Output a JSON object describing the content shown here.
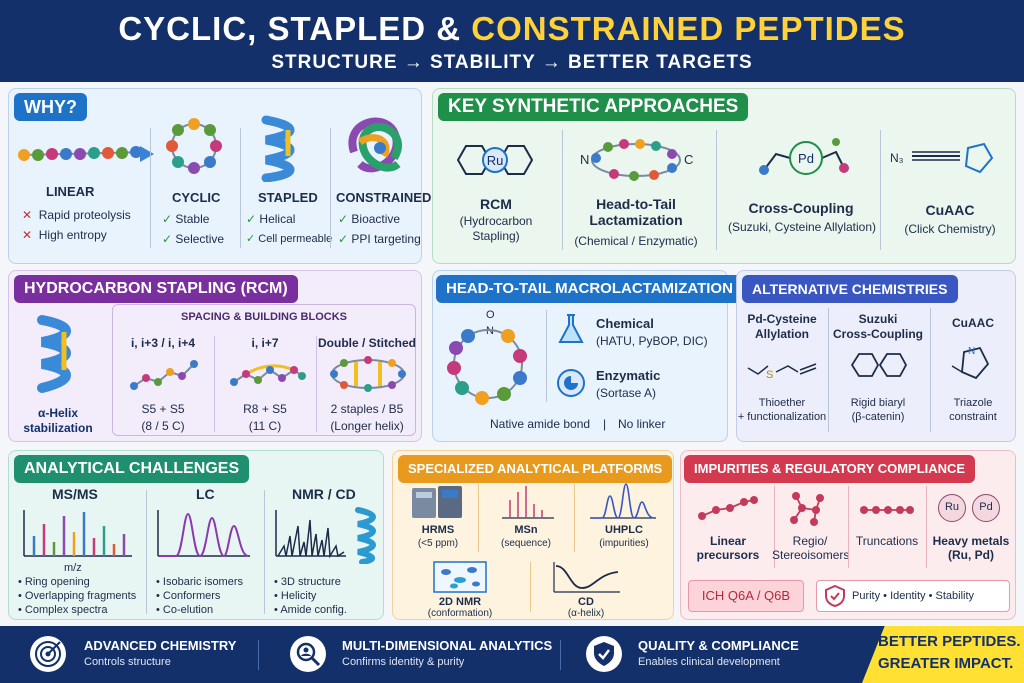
{
  "header": {
    "title_a": "CYCLIC, STAPLED & ",
    "title_b": "CONSTRAINED PEPTIDES",
    "subtitle": "STRUCTURE  →  STABILITY  →  BETTER TARGETS"
  },
  "why": {
    "tag": "WHY?",
    "linear": {
      "label": "LINEAR",
      "items": [
        "Rapid proteolysis",
        "High entropy"
      ]
    },
    "cyclic": {
      "label": "CYCLIC",
      "items": [
        "Stable",
        "Selective"
      ]
    },
    "stapled": {
      "label": "STAPLED",
      "items": [
        "Helical",
        "Cell permeable"
      ]
    },
    "constrained": {
      "label": "CONSTRAINED",
      "items": [
        "Bioactive",
        "PPI targeting"
      ]
    }
  },
  "approaches": {
    "tag": "KEY SYNTHETIC APPROACHES",
    "items": [
      {
        "title": "RCM",
        "sub": "(Hydrocarbon\nStapling)",
        "icon_text": "Ru"
      },
      {
        "title": "Head-to-Tail\nLactamization",
        "sub": "(Chemical / Enzymatic)",
        "n": "N",
        "c": "C"
      },
      {
        "title": "Cross-Coupling",
        "sub": "(Suzuki, Cysteine Allylation)",
        "icon_text": "Pd"
      },
      {
        "title": "CuAAC",
        "sub": "(Click Chemistry)",
        "n3": "N₃"
      }
    ]
  },
  "stapling": {
    "tag": "HYDROCARBON STAPLING (RCM)",
    "helix_label": "α-Helix\nstabilization",
    "blocks_title": "SPACING & BUILDING BLOCKS",
    "cols": [
      {
        "head": "i, i+3 / i, i+4",
        "l1": "S5 + S5",
        "l2": "(8 / 5 C)"
      },
      {
        "head": "i, i+7",
        "l1": "R8 + S5",
        "l2": "(11 C)"
      },
      {
        "head": "Double / Stitched",
        "l1": "2 staples / B5",
        "l2": "(Longer helix)"
      }
    ]
  },
  "macro": {
    "tag": "HEAD-TO-TAIL MACROLACTAMIZATION",
    "o": "O",
    "n": "N",
    "chemical": {
      "title": "Chemical",
      "sub": "(HATU, PyBOP, DIC)"
    },
    "enzymatic": {
      "title": "Enzymatic",
      "sub": "(Sortase A)"
    },
    "footer_a": "Native amide bond",
    "sep": "|",
    "footer_b": "No linker"
  },
  "alt": {
    "tag": "ALTERNATIVE CHEMISTRIES",
    "cols": [
      {
        "title": "Pd-Cysteine\nAllylation",
        "sub": "Thioether\n+ functionalization",
        "s": "S"
      },
      {
        "title": "Suzuki\nCross-Coupling",
        "sub": "Rigid biaryl\n(β-catenin)"
      },
      {
        "title": "CuAAC",
        "sub": "Triazole\nconstraint",
        "n": "N"
      }
    ]
  },
  "challenges": {
    "tag": "ANALYTICAL CHALLENGES",
    "msms": {
      "title": "MS/MS",
      "axis": "m/z",
      "items": [
        "Ring opening",
        "Overlapping fragments",
        "Complex spectra"
      ]
    },
    "lc": {
      "title": "LC",
      "items": [
        "Isobaric isomers",
        "Conformers",
        "Co-elution"
      ]
    },
    "nmr": {
      "title": "NMR / CD",
      "items": [
        "3D structure",
        "Helicity",
        "Amide config."
      ]
    }
  },
  "platforms": {
    "tag": "SPECIALIZED ANALYTICAL PLATFORMS",
    "items": [
      {
        "title": "HRMS",
        "sub": "(<5 ppm)"
      },
      {
        "title": "MSn",
        "sub": "(sequence)"
      },
      {
        "title": "UHPLC",
        "sub": "(impurities)"
      },
      {
        "title": "2D NMR",
        "sub": "(conformation)"
      },
      {
        "title": "CD",
        "sub": "(α-helix)"
      }
    ]
  },
  "impurities": {
    "tag": "IMPURITIES & REGULATORY COMPLIANCE",
    "items": [
      {
        "title": "Linear\nprecursors"
      },
      {
        "title": "Regio/\nStereoisomers"
      },
      {
        "title": "Truncations"
      },
      {
        "title": "Heavy metals\n(Ru, Pd)",
        "ru": "Ru",
        "pd": "Pd"
      }
    ],
    "ich": "ICH Q6A / Q6B",
    "quality": "Purity  •  Identity  •  Stability"
  },
  "footer": {
    "items": [
      {
        "title": "ADVANCED CHEMISTRY",
        "sub": "Controls structure"
      },
      {
        "title": "MULTI-DIMENSIONAL ANALYTICS",
        "sub": "Confirms identity & purity"
      },
      {
        "title": "QUALITY & COMPLIANCE",
        "sub": "Enables clinical development"
      }
    ],
    "slogan1": "BETTER PEPTIDES.",
    "slogan2": "GREATER IMPACT."
  },
  "colors": {
    "navy": "#13306a",
    "blue": "#1e73c8",
    "green": "#1f8f4a",
    "purple": "#7a2f9e",
    "orange": "#e89a1f",
    "red": "#d43a4f",
    "yellow": "#ffd23a"
  }
}
